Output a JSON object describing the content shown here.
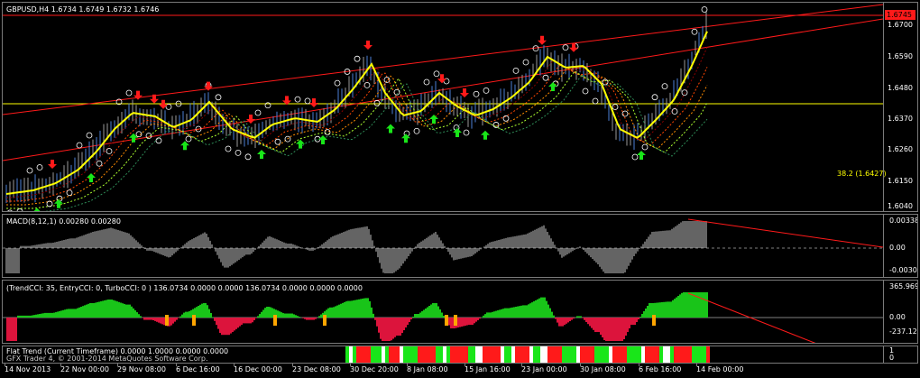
{
  "main": {
    "symbol_label": "GBPUSD,H4  1.6734 1.6749 1.6732 1.6746",
    "price_tag": "1.6745",
    "fib_label": "38.2 (1.6427)",
    "scale": [
      "1.6700",
      "1.6590",
      "1.6480",
      "1.6370",
      "1.6260",
      "1.6150",
      "1.6040"
    ]
  },
  "macd": {
    "label": "MACD(8,12,1) 0.00280 0.00280",
    "scale": [
      "0.00338",
      "0.00",
      "-0.00308"
    ]
  },
  "cci": {
    "label": "(TrendCCI: 35, EntryCCI: 0, TurboCCI: 0 )  136.0734 0.0000 0.0000 136.0734 0.0000 0.0000 0.0000",
    "scale": [
      "365.9696",
      "0.00",
      "-237.126"
    ]
  },
  "flat": {
    "label": "Flat Trend (Current Timeframe) 0.0000 1.0000 0.0000 0.0000",
    "copyright": "GFX Trader 4, © 2001-2014 MetaQuotes Software Corp.",
    "scale": [
      "1",
      "0"
    ]
  },
  "time_axis": [
    "14 Nov 2013",
    "22 Nov 00:00",
    "29 Nov 08:00",
    "6 Dec 16:00",
    "16 Dec 00:00",
    "23 Dec 08:00",
    "30 Dec 20:00",
    "8 Jan 08:00",
    "15 Jan 16:00",
    "23 Jan 00:00",
    "30 Jan 08:00",
    "6 Feb 16:00",
    "14 Feb 00:00"
  ],
  "colors": {
    "background": "#000000",
    "grid": "#7a7a7a",
    "bull_candle": "#4d7fd6",
    "ma_fast": "#ffff00",
    "channel": "#ff1a1a",
    "buy_arrow": "#19e619",
    "sell_arrow": "#ff1a1a",
    "cci_green": "#19c419",
    "cci_red": "#dc143c",
    "cci_orange": "#ffa500"
  }
}
